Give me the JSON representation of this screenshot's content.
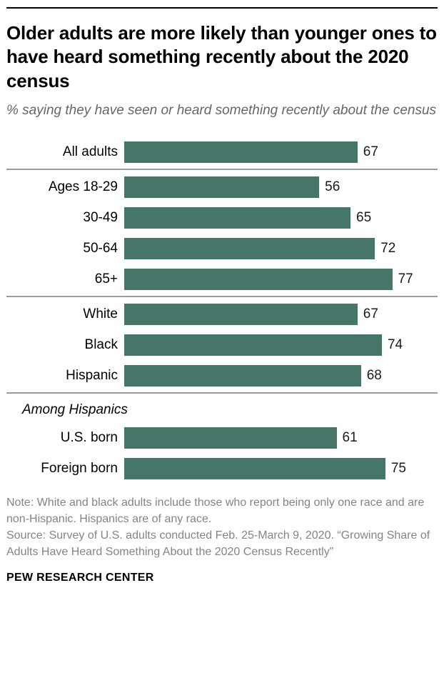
{
  "header": {
    "title": "Older adults are more likely than younger ones to have heard something recently about the 2020 census",
    "subtitle": "% saying they have seen or heard something recently about the census"
  },
  "chart_data": {
    "type": "bar",
    "orientation": "horizontal",
    "title": "Older adults are more likely than younger ones to have heard something recently about the 2020 census",
    "subtitle": "% saying they have seen or heard something recently about the census",
    "xlabel": "",
    "ylabel": "",
    "xlim": [
      0,
      90
    ],
    "grid": false,
    "legend": false,
    "bar_color": "#46756a",
    "groups": [
      {
        "label": null,
        "rows": [
          {
            "category": "All adults",
            "value": 67
          }
        ]
      },
      {
        "label": null,
        "rows": [
          {
            "category": "Ages 18-29",
            "value": 56
          },
          {
            "category": "30-49",
            "value": 65
          },
          {
            "category": "50-64",
            "value": 72
          },
          {
            "category": "65+",
            "value": 77
          }
        ]
      },
      {
        "label": null,
        "rows": [
          {
            "category": "White",
            "value": 67
          },
          {
            "category": "Black",
            "value": 74
          },
          {
            "category": "Hispanic",
            "value": 68
          }
        ]
      },
      {
        "label": "Among Hispanics",
        "rows": [
          {
            "category": "U.S. born",
            "value": 61
          },
          {
            "category": "Foreign born",
            "value": 75
          }
        ]
      }
    ]
  },
  "footer": {
    "note": "Note: White and black adults include those who report being only one race and are non-Hispanic. Hispanics are of any race.",
    "source": "Source: Survey of U.S. adults conducted Feb. 25-March 9, 2020. “Growing Share of Adults Have Heard Something About the 2020 Census Recently”",
    "brand": "PEW RESEARCH CENTER"
  }
}
